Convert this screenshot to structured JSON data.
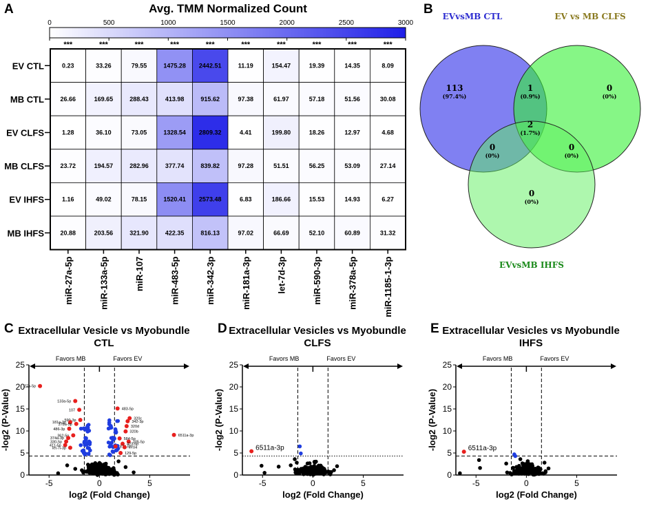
{
  "panels": {
    "a": "A",
    "b": "B",
    "c": "C",
    "d": "D",
    "e": "E"
  },
  "chart_data": [
    {
      "type": "heatmap",
      "title": "Avg. TMM Normalized Count",
      "colorbar": {
        "min": 0,
        "max": 3000,
        "ticks": [
          "0",
          "500",
          "1000",
          "1500",
          "2000",
          "2500",
          "3000"
        ],
        "low_color": "#ffffff",
        "high_color": "#1f1fe8"
      },
      "significance": [
        "***",
        "***",
        "***",
        "***",
        "***",
        "***",
        "***",
        "***",
        "***",
        "***"
      ],
      "rows": [
        "EV CTL",
        "MB CTL",
        "EV CLFS",
        "MB CLFS",
        "EV IHFS",
        "MB IHFS"
      ],
      "columns": [
        "miR-27a-5p",
        "miR-133a-5p",
        "miR-107",
        "miR-483-5p",
        "miR-342-3p",
        "miR-181a-3p",
        "let-7d-3p",
        "miR-590-3p",
        "miR-378a-5p",
        "miR-1185-1-3p"
      ],
      "values": [
        [
          "0.23",
          "33.26",
          "79.55",
          "1475.28",
          "2442.51",
          "11.19",
          "154.47",
          "19.39",
          "14.35",
          "8.09"
        ],
        [
          "26.66",
          "169.65",
          "288.43",
          "413.98",
          "915.62",
          "97.38",
          "61.97",
          "57.18",
          "51.56",
          "30.08"
        ],
        [
          "1.28",
          "36.10",
          "73.05",
          "1328.54",
          "2809.32",
          "4.41",
          "199.80",
          "18.26",
          "12.97",
          "4.68"
        ],
        [
          "23.72",
          "194.57",
          "282.96",
          "377.74",
          "839.82",
          "97.28",
          "51.51",
          "56.25",
          "53.09",
          "27.14"
        ],
        [
          "1.16",
          "49.02",
          "78.15",
          "1520.41",
          "2573.48",
          "6.83",
          "186.66",
          "15.53",
          "14.93",
          "6.27"
        ],
        [
          "20.88",
          "203.56",
          "321.90",
          "422.35",
          "816.13",
          "97.02",
          "66.69",
          "52.10",
          "60.89",
          "31.32"
        ]
      ]
    },
    {
      "type": "venn",
      "sets": [
        {
          "name": "EVvsMB CTL",
          "color": "#6a6af0",
          "label_color": "#2c2cd0"
        },
        {
          "name": "EV vs MB CLFS",
          "color": "#36f036",
          "label_color": "#8a7a20"
        },
        {
          "name": "EVvsMB IHFS",
          "color": "#5ef05e",
          "label_color": "#1a8a1a"
        }
      ],
      "regions": [
        {
          "id": "ctl_only",
          "count": "113",
          "pct": "(97.4%)"
        },
        {
          "id": "ctl_clfs",
          "count": "1",
          "pct": "(0.9%)"
        },
        {
          "id": "clfs_only",
          "count": "0",
          "pct": "(0%)"
        },
        {
          "id": "all",
          "count": "2",
          "pct": "(1.7%)"
        },
        {
          "id": "ctl_ihfs",
          "count": "0",
          "pct": "(0%)"
        },
        {
          "id": "clfs_ihfs",
          "count": "0",
          "pct": "(0%)"
        },
        {
          "id": "ihfs_only",
          "count": "0",
          "pct": "(0%)"
        }
      ]
    },
    {
      "type": "scatter",
      "id": "volcano_ctl",
      "title": "Extracellular Vesicle vs Myobundle",
      "subtitle": "CTL",
      "xlabel": "log2 (Fold Change)",
      "ylabel": "-log2 (P-Value)",
      "xlim": [
        -7,
        9
      ],
      "ylim": [
        0,
        25
      ],
      "xticks": [
        "-5",
        "0",
        "5"
      ],
      "yticks": [
        "0",
        "5",
        "10",
        "15",
        "20",
        "25"
      ],
      "left_arrow": "Favors MB",
      "right_arrow": "Favors EV",
      "threshold_x": 1.5,
      "threshold_y": 4.32,
      "threshold_style": "dashed",
      "colors": {
        "sig": "#e8201e",
        "mid": "#1f3de0",
        "ns": "#000000"
      },
      "sig_points": [
        {
          "x": -5.9,
          "y": 20.2,
          "label": "27a-5p"
        },
        {
          "x": -2.4,
          "y": 16.8,
          "label": "133a-5p"
        },
        {
          "x": -2.0,
          "y": 14.8,
          "label": "107"
        },
        {
          "x": -1.9,
          "y": 12.5,
          "label": "590-3p"
        },
        {
          "x": -2.9,
          "y": 12.0,
          "label": "181a-3p"
        },
        {
          "x": -2.3,
          "y": 11.6,
          "label": "378a-5p"
        },
        {
          "x": -3.0,
          "y": 10.5,
          "label": "486-3p"
        },
        {
          "x": -2.6,
          "y": 9.0,
          "label": "362-5p"
        },
        {
          "x": -3.1,
          "y": 8.4,
          "label": "374a-3p"
        },
        {
          "x": -3.3,
          "y": 7.6,
          "label": "330-5p"
        },
        {
          "x": -3.4,
          "y": 6.8,
          "label": "411-5p"
        },
        {
          "x": -2.9,
          "y": 6.2,
          "label": "let-7i-3p"
        },
        {
          "x": 1.8,
          "y": 15.1,
          "label": "483-5p"
        },
        {
          "x": 3.0,
          "y": 12.9,
          "label": "320c"
        },
        {
          "x": 2.8,
          "y": 12.2,
          "label": "342-3p"
        },
        {
          "x": 2.7,
          "y": 11.1,
          "label": "320d"
        },
        {
          "x": 2.6,
          "y": 9.9,
          "label": "320b"
        },
        {
          "x": 7.4,
          "y": 9.1,
          "label": "6511a-3p"
        },
        {
          "x": 2.0,
          "y": 8.3,
          "label": "584-5p"
        },
        {
          "x": 2.9,
          "y": 7.6,
          "label": "205-5p"
        },
        {
          "x": 2.3,
          "y": 7.1,
          "label": "423-5p"
        },
        {
          "x": 1.6,
          "y": 6.5,
          "label": "877-5p"
        },
        {
          "x": 2.5,
          "y": 6.3,
          "label": "7704"
        },
        {
          "x": 2.1,
          "y": 5.0,
          "label": "129-5p"
        }
      ]
    },
    {
      "type": "scatter",
      "id": "volcano_clfs",
      "title": "Extracellular Vesicles vs Myobundle",
      "subtitle": "CLFS",
      "xlabel": "log2 (Fold Change)",
      "ylabel": "-log2 (P-Value)",
      "xlim": [
        -7,
        9
      ],
      "ylim": [
        0,
        25
      ],
      "xticks": [
        "-5",
        "0",
        "5"
      ],
      "yticks": [
        "0",
        "5",
        "10",
        "15",
        "20",
        "25"
      ],
      "left_arrow": "Favors MB",
      "right_arrow": "Favors EV",
      "threshold_x": 1.5,
      "threshold_y": 4.32,
      "threshold_style": "dotted",
      "colors": {
        "sig": "#e8201e",
        "mid": "#1f3de0",
        "ns": "#000000"
      },
      "sig_points": [
        {
          "x": -6.1,
          "y": 5.4,
          "label": "6511a-3p"
        }
      ]
    },
    {
      "type": "scatter",
      "id": "volcano_ihfs",
      "title": "Extracellular Vesicles vs Myobundle",
      "subtitle": "IHFS",
      "xlabel": "log2 (Fold Change)",
      "ylabel": "-log2 (P-Value)",
      "xlim": [
        -7,
        9
      ],
      "ylim": [
        0,
        25
      ],
      "xticks": [
        "-5",
        "0",
        "5"
      ],
      "yticks": [
        "0",
        "5",
        "10",
        "15",
        "20",
        "25"
      ],
      "left_arrow": "Favors MB",
      "right_arrow": "Favors EV",
      "threshold_x": 1.5,
      "threshold_y": 4.32,
      "threshold_style": "dashed",
      "colors": {
        "sig": "#e8201e",
        "mid": "#1f3de0",
        "ns": "#000000"
      },
      "sig_points": [
        {
          "x": -6.2,
          "y": 5.3,
          "label": "6511a-3p"
        }
      ]
    }
  ]
}
